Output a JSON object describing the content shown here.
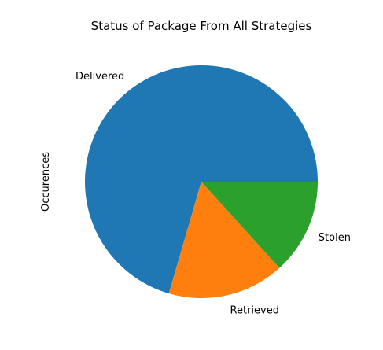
{
  "chart_data": {
    "type": "pie",
    "title": "Status of Package From All Strategies",
    "ylabel": "Occurences",
    "start_angle_deg": 0,
    "direction": "counterclockwise",
    "slices": [
      {
        "label": "Delivered",
        "value": 70.5,
        "color": "#1f77b4"
      },
      {
        "label": "Retrieved",
        "value": 16.2,
        "color": "#ff7f0e"
      },
      {
        "label": "Stolen",
        "value": 13.3,
        "color": "#2ca02c"
      }
    ]
  }
}
